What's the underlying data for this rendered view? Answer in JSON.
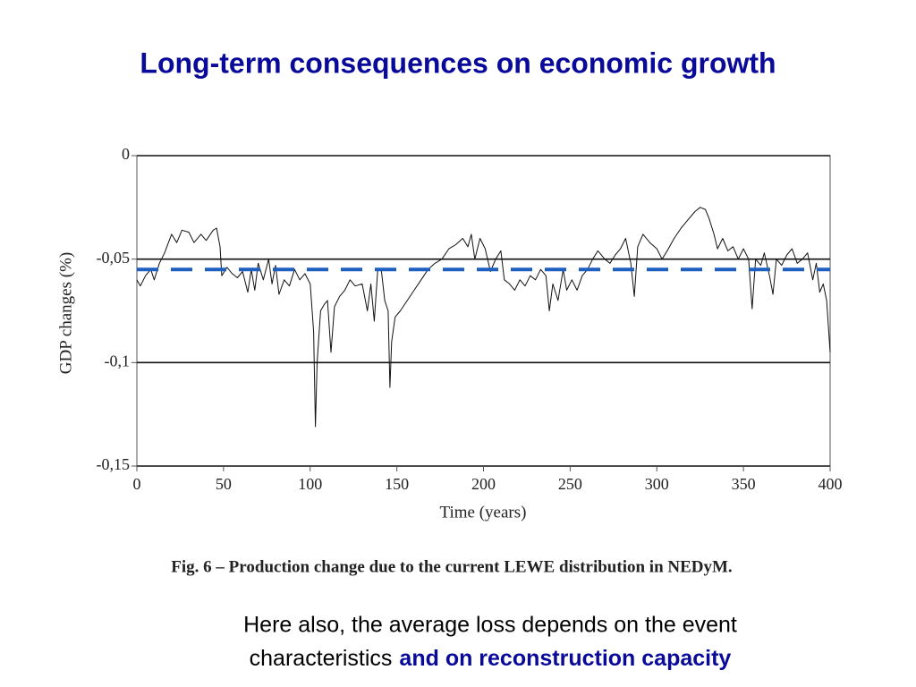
{
  "slide_title": "Long-term consequences on economic growth",
  "chart_data": {
    "type": "line",
    "xlabel": "Time (years)",
    "ylabel": "GDP changes (%)",
    "xlim": [
      0,
      400
    ],
    "xticks": [
      0,
      50,
      100,
      150,
      200,
      250,
      300,
      350,
      400
    ],
    "ylim": [
      -0.15,
      0
    ],
    "yticks": [
      0,
      {
        "value": -0.05,
        "label": "-0,05"
      },
      {
        "value": -0.1,
        "label": "-0,1"
      },
      {
        "value": -0.15,
        "label": "-0,15"
      }
    ],
    "grid": true,
    "color": "#111111",
    "mean_line": {
      "value": -0.055,
      "color": "#1f5fbf"
    },
    "x": [
      0,
      2,
      5,
      8,
      10,
      13,
      16,
      20,
      23,
      26,
      30,
      33,
      37,
      40,
      44,
      46,
      48,
      49,
      52,
      55,
      58,
      61,
      64,
      66,
      68,
      70,
      73,
      76,
      78,
      80,
      82,
      85,
      88,
      91,
      94,
      97,
      100,
      102,
      103,
      104,
      106,
      108,
      110,
      112,
      114,
      117,
      120,
      123,
      126,
      130,
      133,
      135,
      137,
      139,
      141,
      143,
      145,
      146,
      147,
      149,
      152,
      156,
      160,
      164,
      168,
      172,
      176,
      180,
      184,
      188,
      191,
      193,
      195,
      198,
      201,
      204,
      207,
      210,
      212,
      215,
      218,
      221,
      224,
      227,
      230,
      233,
      236,
      238,
      240,
      243,
      246,
      248,
      251,
      254,
      257,
      260,
      263,
      266,
      270,
      273,
      276,
      279,
      282,
      285,
      287,
      289,
      292,
      296,
      300,
      303,
      306,
      310,
      314,
      318,
      322,
      325,
      328,
      330,
      333,
      335,
      338,
      341,
      344,
      347,
      350,
      353,
      355,
      357,
      360,
      362,
      365,
      367,
      369,
      372,
      375,
      378,
      381,
      384,
      387,
      390,
      392,
      394,
      396,
      398,
      400
    ],
    "values": [
      -0.06,
      -0.063,
      -0.058,
      -0.055,
      -0.06,
      -0.052,
      -0.047,
      -0.038,
      -0.042,
      -0.036,
      -0.037,
      -0.042,
      -0.038,
      -0.041,
      -0.036,
      -0.035,
      -0.044,
      -0.058,
      -0.054,
      -0.057,
      -0.059,
      -0.056,
      -0.066,
      -0.055,
      -0.065,
      -0.052,
      -0.06,
      -0.05,
      -0.062,
      -0.053,
      -0.067,
      -0.06,
      -0.063,
      -0.055,
      -0.06,
      -0.057,
      -0.062,
      -0.085,
      -0.131,
      -0.1,
      -0.075,
      -0.072,
      -0.07,
      -0.095,
      -0.073,
      -0.068,
      -0.065,
      -0.06,
      -0.063,
      -0.062,
      -0.075,
      -0.062,
      -0.08,
      -0.055,
      -0.055,
      -0.07,
      -0.075,
      -0.112,
      -0.09,
      -0.078,
      -0.075,
      -0.07,
      -0.065,
      -0.06,
      -0.055,
      -0.052,
      -0.05,
      -0.045,
      -0.043,
      -0.04,
      -0.044,
      -0.038,
      -0.05,
      -0.04,
      -0.045,
      -0.056,
      -0.05,
      -0.046,
      -0.06,
      -0.062,
      -0.065,
      -0.06,
      -0.063,
      -0.058,
      -0.06,
      -0.055,
      -0.058,
      -0.075,
      -0.062,
      -0.07,
      -0.055,
      -0.065,
      -0.06,
      -0.065,
      -0.058,
      -0.055,
      -0.05,
      -0.046,
      -0.05,
      -0.052,
      -0.048,
      -0.045,
      -0.04,
      -0.052,
      -0.068,
      -0.044,
      -0.038,
      -0.042,
      -0.045,
      -0.05,
      -0.046,
      -0.04,
      -0.035,
      -0.031,
      -0.027,
      -0.025,
      -0.026,
      -0.03,
      -0.038,
      -0.045,
      -0.04,
      -0.046,
      -0.044,
      -0.05,
      -0.045,
      -0.05,
      -0.074,
      -0.05,
      -0.053,
      -0.047,
      -0.058,
      -0.067,
      -0.05,
      -0.053,
      -0.048,
      -0.045,
      -0.052,
      -0.05,
      -0.047,
      -0.06,
      -0.052,
      -0.066,
      -0.062,
      -0.07,
      -0.095
    ]
  },
  "caption": "Fig. 6 – Production change due to the current LEWE distribution in NEDyM.",
  "note": {
    "lines": [
      "Here also, the average loss depends on the event",
      "characteristics"
    ],
    "emphasis": "and on reconstruction capacity"
  }
}
